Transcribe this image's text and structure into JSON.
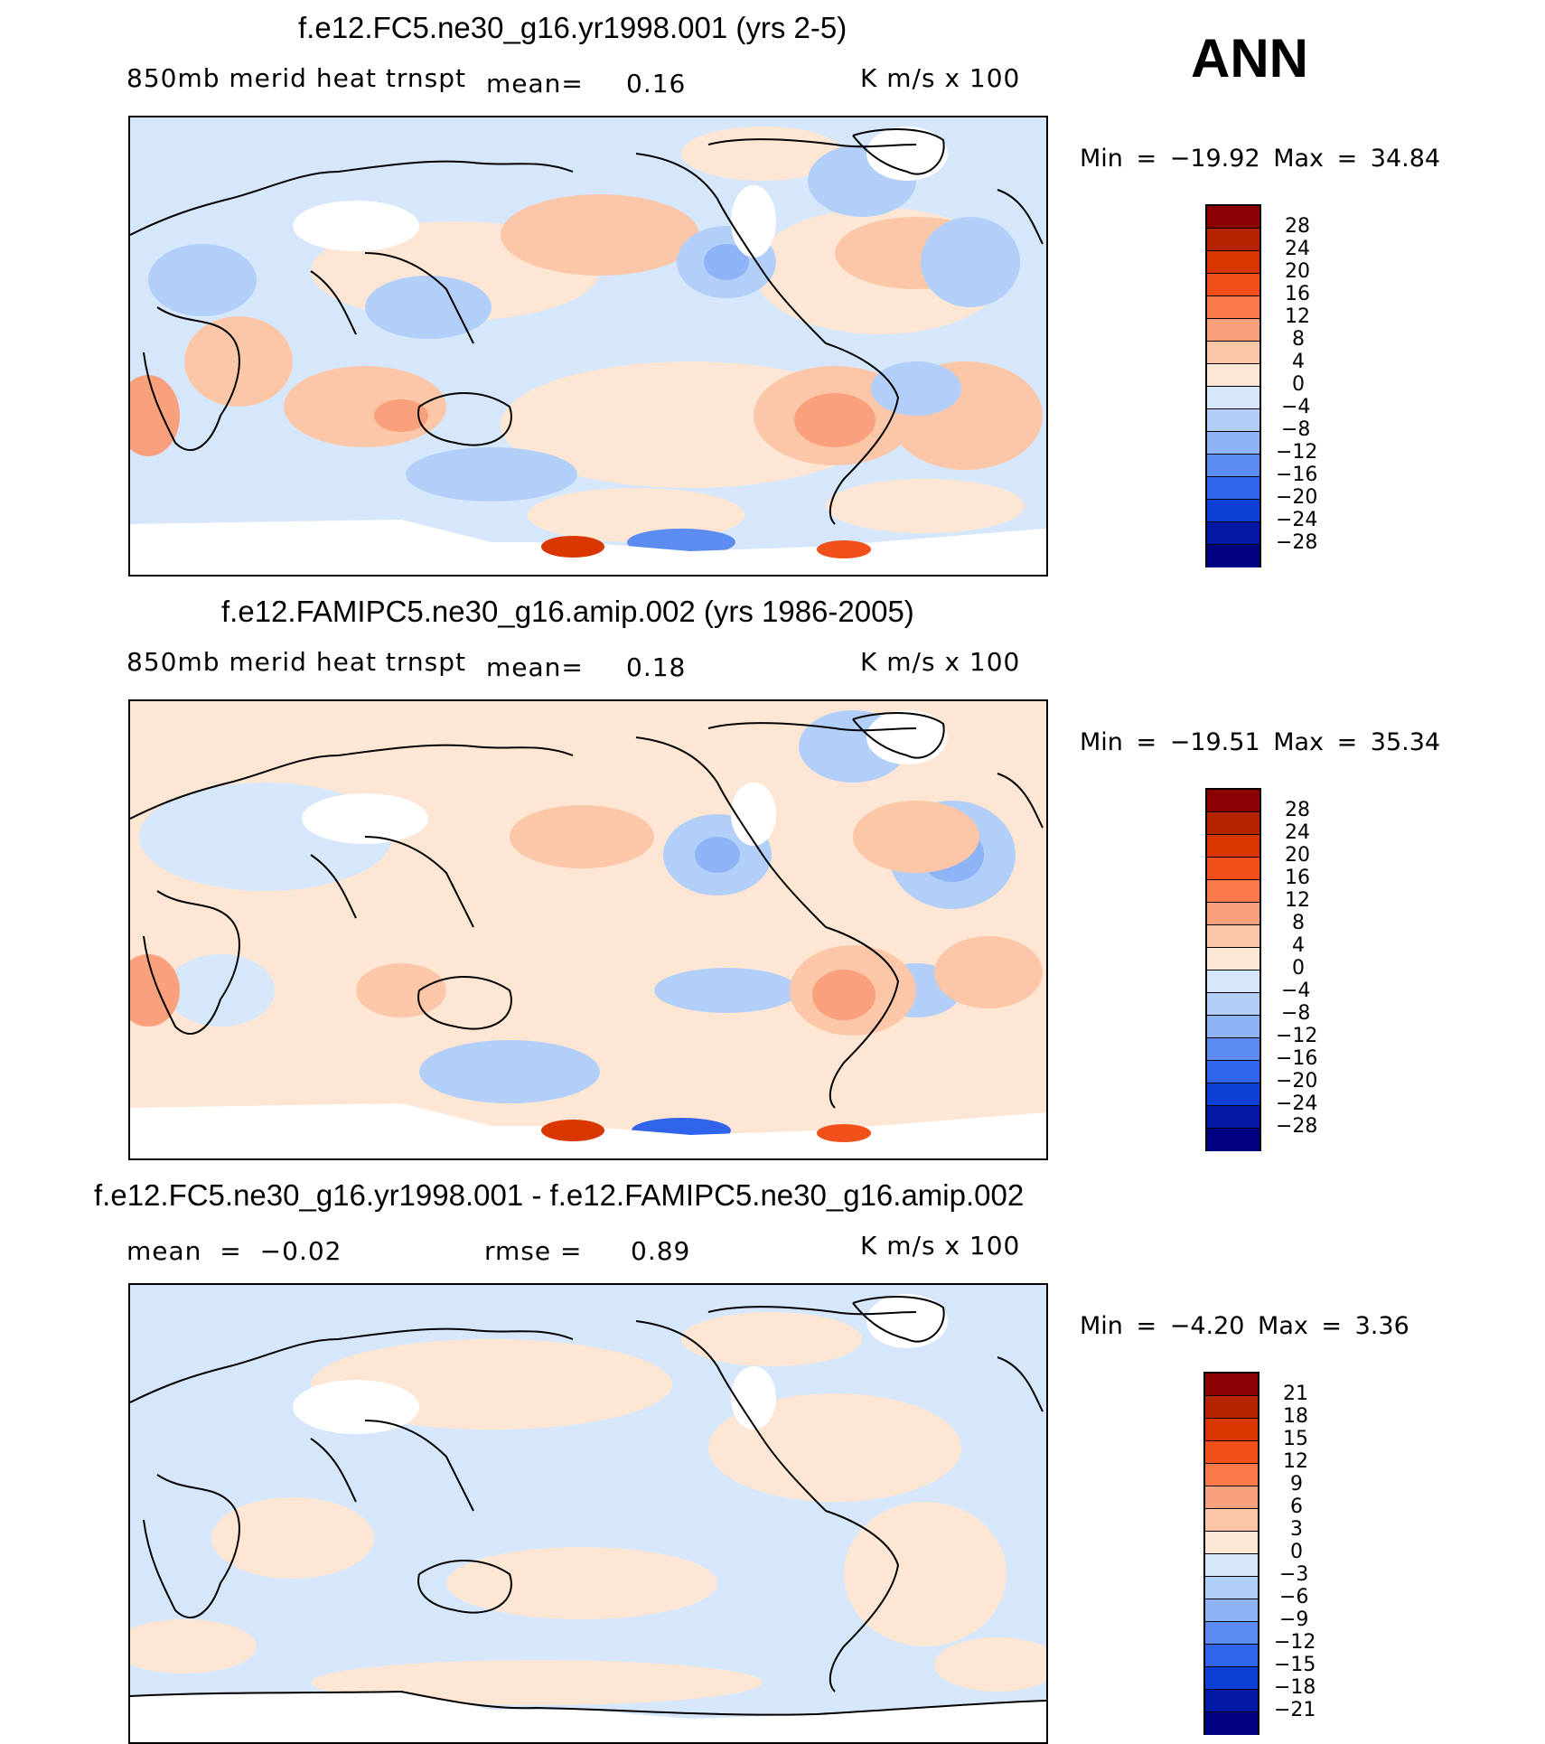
{
  "season": "ANN",
  "panels": [
    {
      "title": "f.e12.FC5.ne30_g16.yr1998.001 (yrs 2-5)",
      "left_label": "850mb merid heat trnspt",
      "stat1_label": "mean=",
      "stat1_value": "0.16",
      "units": "K m/s x 100",
      "minmax": "Min = −19.92 Max = 34.84",
      "colorbar_labels": [
        "28",
        "24",
        "20",
        "16",
        "12",
        "8",
        "4",
        "0",
        "−4",
        "−8",
        "−12",
        "−16",
        "−20",
        "−24",
        "−28"
      ]
    },
    {
      "title": "f.e12.FAMIPC5.ne30_g16.amip.002 (yrs 1986-2005)",
      "left_label": "850mb merid heat trnspt",
      "stat1_label": "mean=",
      "stat1_value": "0.18",
      "units": "K m/s x 100",
      "minmax": "Min = −19.51 Max = 35.34",
      "colorbar_labels": [
        "28",
        "24",
        "20",
        "16",
        "12",
        "8",
        "4",
        "0",
        "−4",
        "−8",
        "−12",
        "−16",
        "−20",
        "−24",
        "−28"
      ]
    },
    {
      "title": "f.e12.FC5.ne30_g16.yr1998.001 - f.e12.FAMIPC5.ne30_g16.amip.002",
      "left_label": "mean = −0.02",
      "stat1_label": "rmse =",
      "stat1_value": "0.89",
      "units": "K m/s x 100",
      "minmax": "Min = −4.20 Max = 3.36",
      "colorbar_labels": [
        "21",
        "18",
        "15",
        "12",
        "9",
        "6",
        "3",
        "0",
        "−3",
        "−6",
        "−9",
        "−12",
        "−15",
        "−18",
        "−21"
      ]
    }
  ],
  "colorbar_colors": [
    "#8b0000",
    "#b52400",
    "#d93600",
    "#f2501a",
    "#f97a48",
    "#f9a07c",
    "#fbc7a8",
    "#fde7d4",
    "#d6e7fb",
    "#b2cff9",
    "#8eb3f6",
    "#5c8cf1",
    "#2f64eb",
    "#0c3fd6",
    "#0018a3",
    "#000080"
  ]
}
